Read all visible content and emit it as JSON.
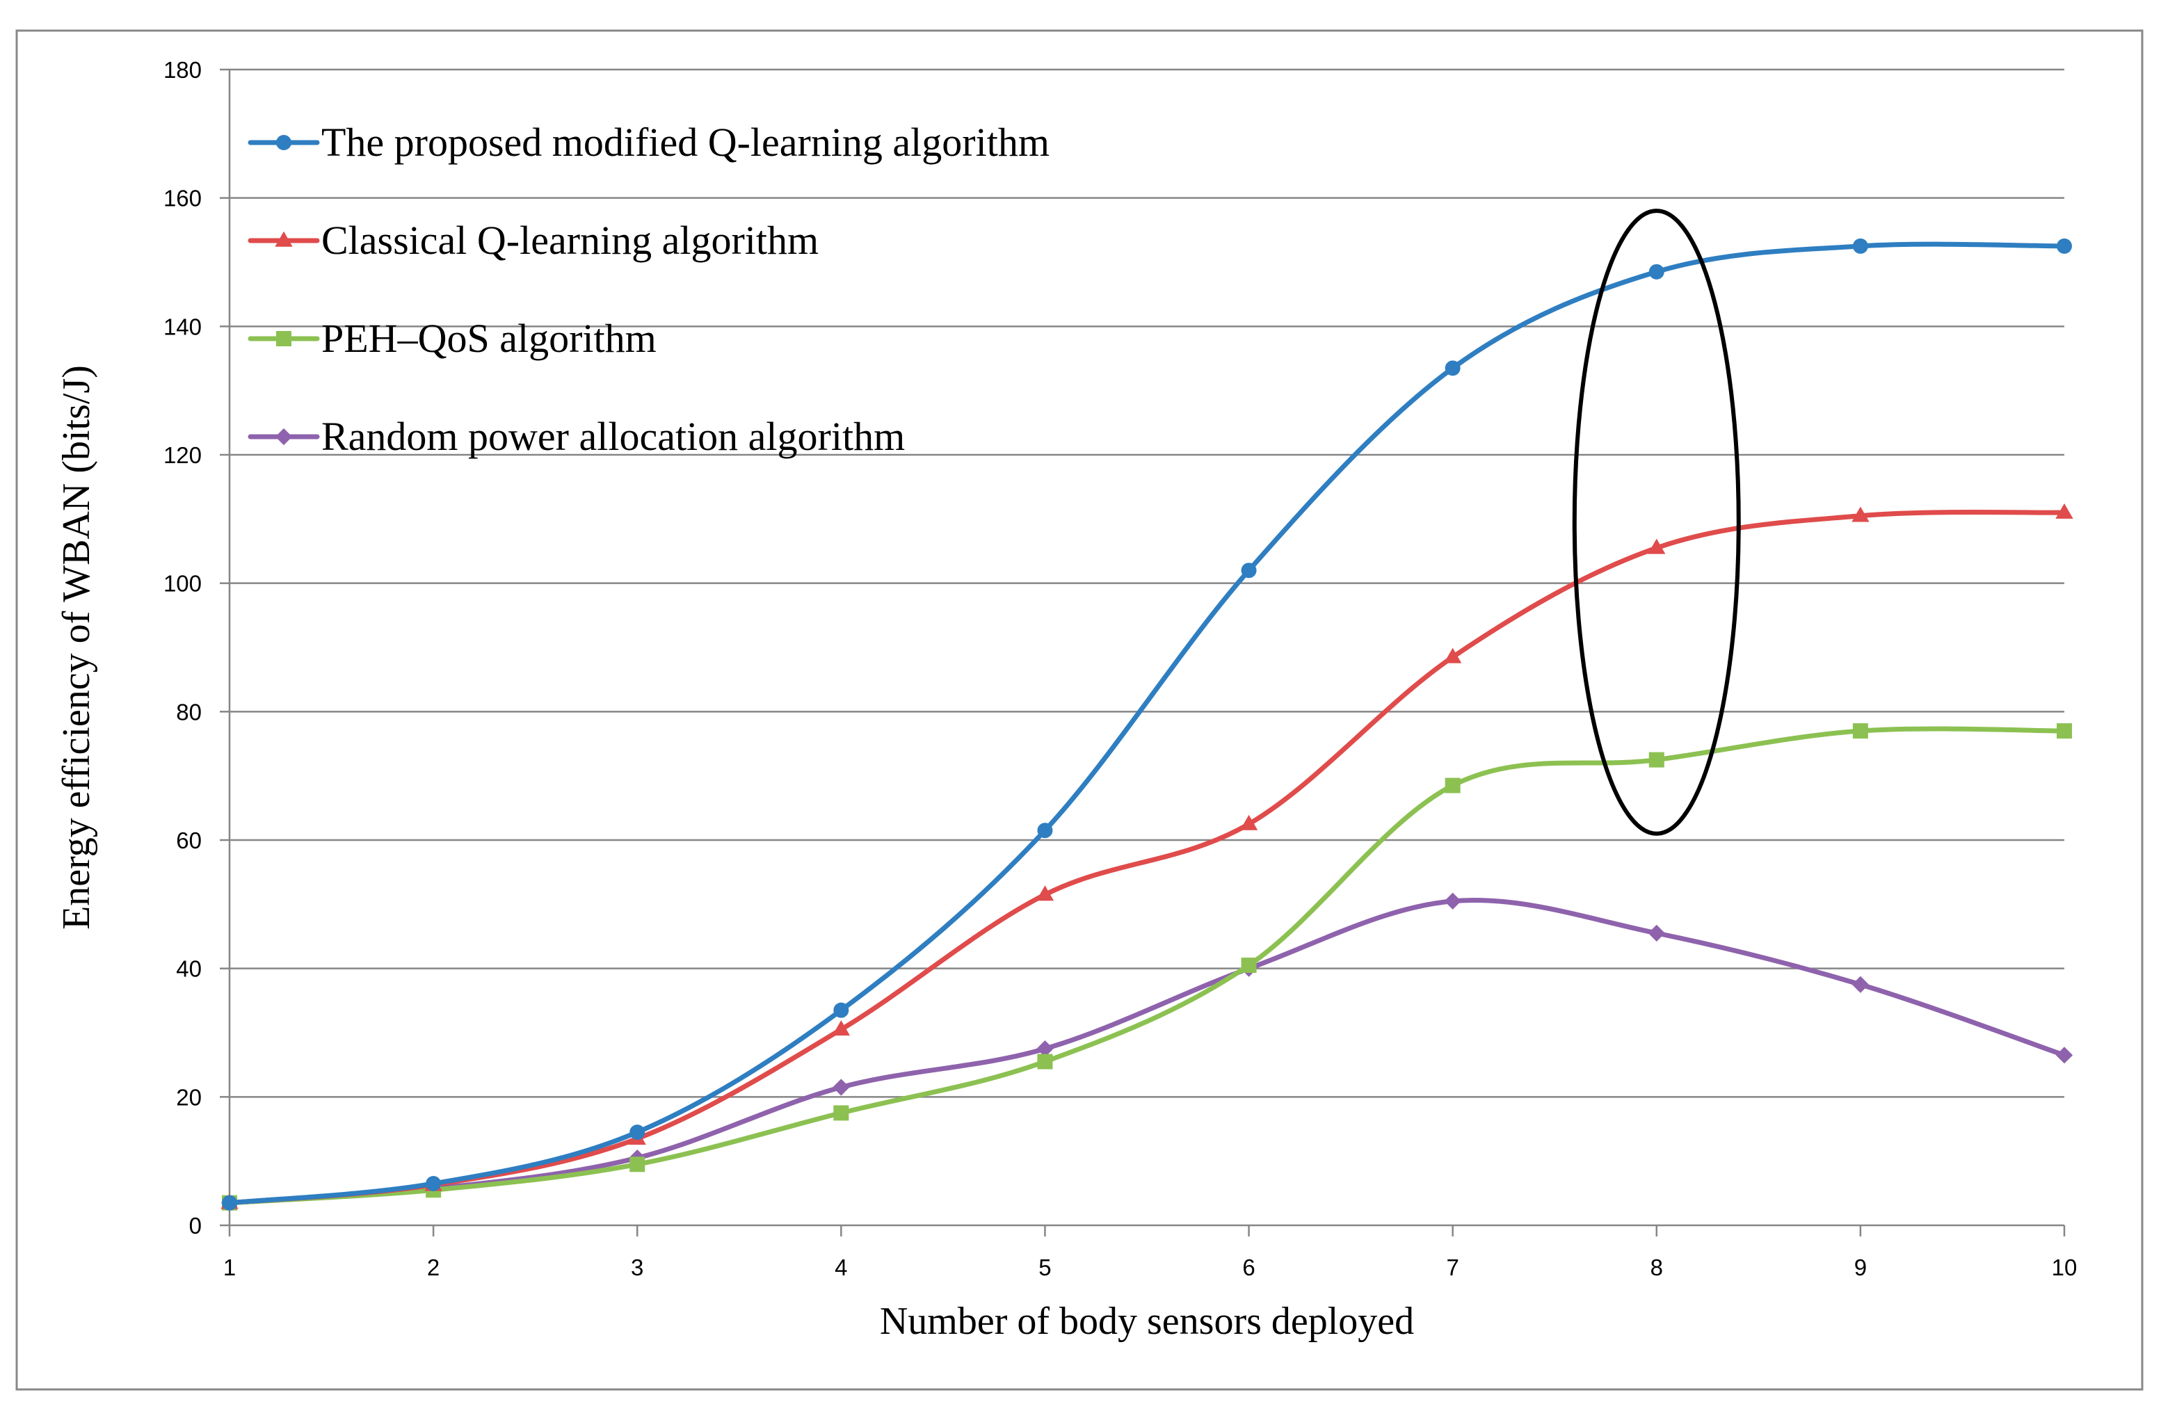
{
  "chart_data": {
    "type": "line",
    "title": "",
    "xlabel": "Number of body sensors deployed",
    "ylabel": "Energy efficiency of WBAN (bits/J)",
    "x": [
      1,
      2,
      3,
      4,
      5,
      6,
      7,
      8,
      9,
      10
    ],
    "xlim": [
      1,
      10
    ],
    "ylim": [
      0,
      180
    ],
    "yticks": [
      0,
      20,
      40,
      60,
      80,
      100,
      120,
      140,
      160,
      180
    ],
    "xticks": [
      1,
      2,
      3,
      4,
      5,
      6,
      7,
      8,
      9,
      10
    ],
    "grid": "horizontal",
    "legend": "top-left",
    "series": [
      {
        "name": "The proposed modified Q-learning algorithm",
        "color": "#2E7EC1",
        "marker": "circle",
        "values": [
          3.5,
          6.5,
          14.5,
          33.5,
          61.5,
          102,
          133.5,
          148.5,
          152.5,
          152.5
        ]
      },
      {
        "name": "Classical Q-learning algorithm",
        "color": "#E04B4B",
        "marker": "triangle",
        "values": [
          3.5,
          6.3,
          13.5,
          30.5,
          51.5,
          62.5,
          88.5,
          105.5,
          110.5,
          111
        ]
      },
      {
        "name": "PEH–QoS algorithm",
        "color": "#8CC152",
        "marker": "square",
        "values": [
          3.5,
          5.5,
          9.5,
          17.5,
          25.5,
          40.5,
          68.5,
          72.5,
          77,
          77
        ]
      },
      {
        "name": "Random power allocation algorithm",
        "color": "#8E62AC",
        "marker": "diamond",
        "values": [
          3.5,
          5.7,
          10.5,
          21.5,
          27.5,
          40,
          50.5,
          45.5,
          37.5,
          26.5
        ]
      }
    ],
    "annotations": [
      {
        "type": "ellipse",
        "around_x": 8,
        "y_range": [
          61,
          158
        ]
      }
    ]
  }
}
